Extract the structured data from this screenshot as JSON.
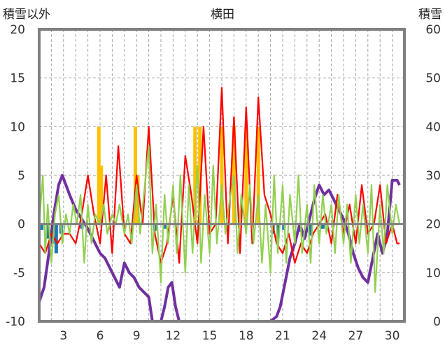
{
  "chart_data": {
    "type": "line",
    "title": "横田",
    "ylabel_left": "積雪以外",
    "ylabel_right": "積雪",
    "xlim": [
      1,
      31
    ],
    "ylim_left": [
      -10,
      20
    ],
    "ylim_right": [
      0,
      60
    ],
    "x_ticks": [
      3,
      6,
      9,
      12,
      15,
      18,
      21,
      24,
      27,
      30
    ],
    "y_ticks_left": [
      -10,
      -5,
      0,
      5,
      10,
      15,
      20
    ],
    "y_ticks_right": [
      0,
      10,
      20,
      30,
      40,
      50,
      60
    ],
    "grid": true,
    "legend": "none",
    "colors": {
      "snow_depth": "#7030a0",
      "temperature": "#ff0000",
      "wind": "#92d050",
      "snowfall": "#ffc000",
      "precip_neg": "#1f77b4",
      "axis": "#808080",
      "grid": "#a6a6a6"
    },
    "series": [
      {
        "key": "snow_depth",
        "axis": "right",
        "points": [
          [
            1,
            4
          ],
          [
            1.4,
            7
          ],
          [
            1.8,
            14
          ],
          [
            2.2,
            22
          ],
          [
            2.6,
            28
          ],
          [
            2.9,
            30
          ],
          [
            3.2,
            28
          ],
          [
            3.5,
            26
          ],
          [
            4,
            23
          ],
          [
            4.5,
            21
          ],
          [
            5,
            19
          ],
          [
            5.4,
            17
          ],
          [
            5.8,
            15
          ],
          [
            6,
            14
          ],
          [
            6.4,
            13
          ],
          [
            6.8,
            11
          ],
          [
            7.2,
            9
          ],
          [
            7.6,
            7
          ],
          [
            8,
            12
          ],
          [
            8.4,
            10
          ],
          [
            8.8,
            9
          ],
          [
            9.2,
            7
          ],
          [
            9.6,
            6
          ],
          [
            10,
            5
          ],
          [
            10.3,
            0
          ],
          [
            11,
            0
          ],
          [
            11.3,
            3
          ],
          [
            11.6,
            7
          ],
          [
            11.9,
            8
          ],
          [
            12.2,
            3
          ],
          [
            12.5,
            0
          ],
          [
            13,
            0
          ],
          [
            14,
            0
          ],
          [
            15,
            0
          ],
          [
            16,
            0
          ],
          [
            17,
            0
          ],
          [
            18,
            0
          ],
          [
            19,
            0
          ],
          [
            20,
            0
          ],
          [
            20.5,
            1
          ],
          [
            20.8,
            3
          ],
          [
            21.2,
            8
          ],
          [
            21.6,
            13
          ],
          [
            22,
            16
          ],
          [
            22.4,
            20
          ],
          [
            22.8,
            17
          ],
          [
            23.2,
            21
          ],
          [
            23.6,
            25
          ],
          [
            24,
            28
          ],
          [
            24.4,
            26
          ],
          [
            24.8,
            27
          ],
          [
            25.2,
            25
          ],
          [
            25.6,
            23
          ],
          [
            26,
            21
          ],
          [
            26.4,
            18
          ],
          [
            26.8,
            14
          ],
          [
            27.2,
            11
          ],
          [
            27.6,
            9
          ],
          [
            28,
            8
          ],
          [
            28.4,
            13
          ],
          [
            28.8,
            18
          ],
          [
            29.2,
            14
          ],
          [
            29.6,
            18
          ],
          [
            30,
            29
          ],
          [
            30.4,
            29
          ],
          [
            30.6,
            28
          ]
        ]
      },
      {
        "key": "temperature",
        "axis": "left",
        "points": [
          [
            1,
            -2
          ],
          [
            1.5,
            -3
          ],
          [
            2,
            -1
          ],
          [
            2.5,
            -2
          ],
          [
            3,
            -1
          ],
          [
            3.5,
            -1
          ],
          [
            4,
            -2
          ],
          [
            4.5,
            1
          ],
          [
            5,
            5
          ],
          [
            5.5,
            1
          ],
          [
            6,
            -2
          ],
          [
            6.5,
            5
          ],
          [
            7,
            -3
          ],
          [
            7.5,
            8
          ],
          [
            8,
            -1
          ],
          [
            8.5,
            -2
          ],
          [
            9,
            5
          ],
          [
            9.5,
            0
          ],
          [
            10,
            10
          ],
          [
            10.5,
            -1
          ],
          [
            11,
            -4
          ],
          [
            11.5,
            -2
          ],
          [
            12,
            3
          ],
          [
            12.5,
            -4
          ],
          [
            13,
            7
          ],
          [
            13.5,
            3
          ],
          [
            14,
            -2
          ],
          [
            14.5,
            10
          ],
          [
            15,
            -1
          ],
          [
            15.5,
            0
          ],
          [
            16,
            14
          ],
          [
            16.5,
            -2
          ],
          [
            17,
            11
          ],
          [
            17.5,
            -3
          ],
          [
            18,
            12
          ],
          [
            18.5,
            -2
          ],
          [
            19,
            13
          ],
          [
            19.5,
            3
          ],
          [
            20,
            1
          ],
          [
            20.5,
            -2
          ],
          [
            21,
            -3
          ],
          [
            21.5,
            -1
          ],
          [
            22,
            -4
          ],
          [
            22.5,
            -2
          ],
          [
            23,
            -3
          ],
          [
            23.5,
            -1
          ],
          [
            24,
            0
          ],
          [
            24.5,
            1
          ],
          [
            25,
            -2
          ],
          [
            25.5,
            3
          ],
          [
            26,
            -1
          ],
          [
            26.5,
            2
          ],
          [
            27,
            -2
          ],
          [
            27.5,
            4
          ],
          [
            28,
            -1
          ],
          [
            28.5,
            0
          ],
          [
            29,
            4
          ],
          [
            29.5,
            -2
          ],
          [
            30,
            0
          ],
          [
            30.4,
            -2
          ],
          [
            30.6,
            -2
          ]
        ]
      },
      {
        "key": "wind",
        "axis": "left",
        "points": [
          [
            1,
            0
          ],
          [
            1.3,
            5
          ],
          [
            1.5,
            -3
          ],
          [
            1.7,
            2
          ],
          [
            2,
            -4
          ],
          [
            2.3,
            1
          ],
          [
            2.6,
            3
          ],
          [
            2.9,
            -2
          ],
          [
            3.2,
            1
          ],
          [
            3.5,
            -1
          ],
          [
            3.8,
            2
          ],
          [
            4.1,
            0
          ],
          [
            4.4,
            3
          ],
          [
            4.7,
            -4
          ],
          [
            5,
            2
          ],
          [
            5.3,
            -2
          ],
          [
            5.6,
            1
          ],
          [
            6,
            0
          ],
          [
            6.3,
            2
          ],
          [
            6.6,
            -1
          ],
          [
            7,
            1
          ],
          [
            7.3,
            0
          ],
          [
            7.6,
            2
          ],
          [
            8,
            -1
          ],
          [
            8.3,
            1
          ],
          [
            8.6,
            -2
          ],
          [
            9,
            4
          ],
          [
            9.3,
            -1
          ],
          [
            9.6,
            3
          ],
          [
            10,
            8
          ],
          [
            10.3,
            -3
          ],
          [
            10.6,
            2
          ],
          [
            11,
            -6
          ],
          [
            11.3,
            3
          ],
          [
            11.6,
            -2
          ],
          [
            12,
            4
          ],
          [
            12.3,
            -3
          ],
          [
            12.6,
            5
          ],
          [
            13,
            -5
          ],
          [
            13.3,
            4
          ],
          [
            13.6,
            -3
          ],
          [
            14,
            6
          ],
          [
            14.3,
            -4
          ],
          [
            14.6,
            3
          ],
          [
            15,
            -3
          ],
          [
            15.3,
            6
          ],
          [
            15.6,
            -2
          ],
          [
            16,
            4
          ],
          [
            16.3,
            -1
          ],
          [
            16.6,
            2
          ],
          [
            17,
            5
          ],
          [
            17.3,
            -3
          ],
          [
            17.6,
            3
          ],
          [
            18,
            -1
          ],
          [
            18.3,
            4
          ],
          [
            18.6,
            -2
          ],
          [
            19,
            3
          ],
          [
            19.3,
            -4
          ],
          [
            19.6,
            2
          ],
          [
            20,
            -5
          ],
          [
            20.3,
            5
          ],
          [
            20.6,
            -3
          ],
          [
            21,
            4
          ],
          [
            21.3,
            -4
          ],
          [
            21.6,
            3
          ],
          [
            22,
            -2
          ],
          [
            22.3,
            5
          ],
          [
            22.6,
            -3
          ],
          [
            23,
            2
          ],
          [
            23.3,
            -4
          ],
          [
            23.6,
            4
          ],
          [
            24,
            -2
          ],
          [
            24.3,
            3
          ],
          [
            24.6,
            -1
          ],
          [
            25,
            2
          ],
          [
            25.3,
            -3
          ],
          [
            25.6,
            3
          ],
          [
            26,
            -2
          ],
          [
            26.3,
            2
          ],
          [
            26.6,
            -4
          ],
          [
            27,
            3
          ],
          [
            27.3,
            -2
          ],
          [
            27.6,
            2
          ],
          [
            28,
            -3
          ],
          [
            28.3,
            4
          ],
          [
            28.6,
            -7
          ],
          [
            29,
            2
          ],
          [
            29.3,
            -3
          ],
          [
            29.6,
            4
          ],
          [
            30,
            -1
          ],
          [
            30.3,
            2
          ],
          [
            30.6,
            0
          ]
        ]
      }
    ],
    "bars_snowfall": [
      [
        5.9,
        10
      ],
      [
        6.1,
        6
      ],
      [
        8.9,
        10
      ],
      [
        9.1,
        5
      ],
      [
        13.8,
        10
      ],
      [
        14.2,
        10
      ],
      [
        16.0,
        10
      ],
      [
        17.0,
        10
      ],
      [
        18.0,
        10
      ],
      [
        19.0,
        10
      ]
    ],
    "bars_precip": [
      [
        1.2,
        -0.6
      ],
      [
        1.7,
        -1.5
      ],
      [
        2.1,
        -2
      ],
      [
        2.4,
        -3
      ],
      [
        2.8,
        -1
      ],
      [
        4.5,
        -0.5
      ],
      [
        10.5,
        -0.7
      ],
      [
        11.3,
        -0.5
      ],
      [
        20.2,
        -1
      ],
      [
        20.6,
        -1.5
      ],
      [
        21.1,
        -0.6
      ],
      [
        22.4,
        -0.8
      ],
      [
        23.3,
        -1.2
      ],
      [
        24.3,
        -0.5
      ]
    ]
  }
}
